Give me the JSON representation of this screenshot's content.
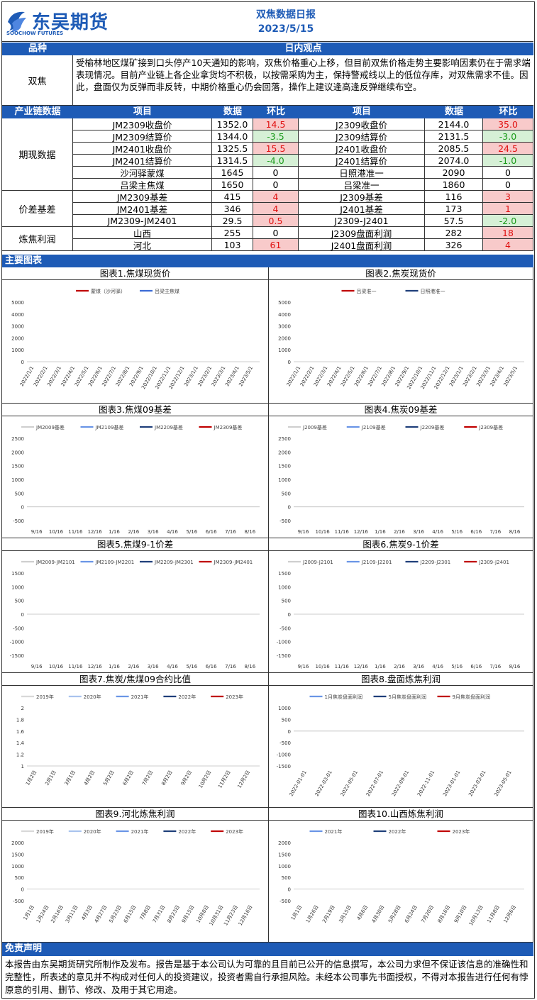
{
  "header": {
    "company": "东吴期货",
    "company_sub": "SOOCHOW FUTURES",
    "title": "双焦数据日报",
    "date": "2023/5/15"
  },
  "top_bar": {
    "variety": "品种",
    "view": "日内观点"
  },
  "view": {
    "variety": "双焦",
    "text": "受榆林地区煤矿接到口头停产10天通知的影响，双焦价格重心上移，但目前双焦价格走势主要影响因素仍在于需求端表现情况。目前产业链上各企业拿货均不积极，以按需采购为主，保持警戒线以上的低位存库，对双焦需求不佳。因此，盘面仅为反弹而非反转，中期价格重心仍会回落，操作上建议逢高逢反弹继续布空。"
  },
  "table_header": {
    "section": "产业链数据",
    "item": "项目",
    "data": "数据",
    "change": "环比"
  },
  "sections": [
    {
      "name": "期现数据",
      "rows": [
        {
          "l_item": "JM2309收盘价",
          "l_val": "1352.0",
          "l_chg": "14.5",
          "l_c": "red",
          "r_item": "J2309收盘价",
          "r_val": "2144.0",
          "r_chg": "35.0",
          "r_c": "red"
        },
        {
          "l_item": "JM2309结算价",
          "l_val": "1344.0",
          "l_chg": "-3.5",
          "l_c": "grn",
          "r_item": "J2309结算价",
          "r_val": "2131.5",
          "r_chg": "-3.0",
          "r_c": "grn"
        },
        {
          "l_item": "JM2401收盘价",
          "l_val": "1325.5",
          "l_chg": "15.5",
          "l_c": "red",
          "r_item": "J2401收盘价",
          "r_val": "2085.5",
          "r_chg": "24.5",
          "r_c": "red"
        },
        {
          "l_item": "JM2401结算价",
          "l_val": "1314.5",
          "l_chg": "-4.0",
          "l_c": "grn",
          "r_item": "J2401结算价",
          "r_val": "2074.0",
          "r_chg": "-1.0",
          "r_c": "grn"
        },
        {
          "l_item": "沙河驿蒙煤",
          "l_val": "1645",
          "l_chg": "0",
          "l_c": "",
          "r_item": "日照港准一",
          "r_val": "2090",
          "r_chg": "0",
          "r_c": ""
        },
        {
          "l_item": "吕梁主焦煤",
          "l_val": "1650",
          "l_chg": "0",
          "l_c": "",
          "r_item": "吕梁准一",
          "r_val": "1860",
          "r_chg": "0",
          "r_c": ""
        }
      ]
    },
    {
      "name": "价差基差",
      "rows": [
        {
          "l_item": "JM2309基差",
          "l_val": "415",
          "l_chg": "4",
          "l_c": "red",
          "r_item": "J2309基差",
          "r_val": "116",
          "r_chg": "3",
          "r_c": "red"
        },
        {
          "l_item": "JM2401基差",
          "l_val": "346",
          "l_chg": "4",
          "l_c": "red",
          "r_item": "J2401基差",
          "r_val": "173",
          "r_chg": "1",
          "r_c": "red"
        },
        {
          "l_item": "JM2309-JM2401",
          "l_val": "29.5",
          "l_chg": "0.5",
          "l_c": "red",
          "r_item": "J2309-J2401",
          "r_val": "57.5",
          "r_chg": "-2.0",
          "r_c": "grn"
        }
      ]
    },
    {
      "name": "炼焦利润",
      "rows": [
        {
          "l_item": "山西",
          "l_val": "255",
          "l_chg": "0",
          "l_c": "",
          "r_item": "J2309盘面利润",
          "r_val": "282",
          "r_chg": "18",
          "r_c": "red"
        },
        {
          "l_item": "河北",
          "l_val": "103",
          "l_chg": "61",
          "l_c": "red",
          "r_item": "J2401盘面利润",
          "r_val": "326",
          "r_chg": "4",
          "r_c": "red"
        }
      ]
    }
  ],
  "charts_bar": "主要图表",
  "charts": [
    {
      "title": "图表1.焦煤现货价",
      "legend": [
        "蒙煤（沙河驿）",
        "吕梁主焦煤"
      ],
      "colors": [
        "#c00000",
        "#3b6bd6"
      ],
      "yticks": [
        "5000",
        "4000",
        "3000",
        "2000",
        "1000",
        "0"
      ],
      "xticks": [
        "2022/1/1",
        "2022/2/1",
        "2022/3/1",
        "2022/4/1",
        "2022/5/1",
        "2022/6/1",
        "2022/7/1",
        "2022/8/1",
        "2022/9/1",
        "2022/10/1",
        "2022/11/1",
        "2022/12/1",
        "2023/1/1",
        "2023/2/1",
        "2023/3/1",
        "2023/4/1",
        "2023/5/1"
      ],
      "xrot": true
    },
    {
      "title": "图表2.焦炭现货价",
      "legend": [
        "吕梁准一",
        "日照港准一"
      ],
      "colors": [
        "#c00000",
        "#1f3f7a"
      ],
      "yticks": [
        "5000",
        "4000",
        "3000",
        "2000",
        "1000",
        "0"
      ],
      "xticks": [
        "2022/1/1",
        "2022/2/1",
        "2022/3/1",
        "2022/4/1",
        "2022/5/1",
        "2022/6/1",
        "2022/7/1",
        "2022/8/1",
        "2022/9/1",
        "2022/10/1",
        "2022/11/1",
        "2022/12/1",
        "2023/1/1",
        "2023/2/1",
        "2023/3/1",
        "2023/4/1",
        "2023/5/1"
      ],
      "xrot": true
    },
    {
      "title": "图表3.焦煤09基差",
      "legend": [
        "JM2009基差",
        "JM2109基差",
        "JM2209基差",
        "JM2309基差"
      ],
      "colors": [
        "#cfcfcf",
        "#6a95e6",
        "#1f3f7a",
        "#c00000"
      ],
      "yticks": [
        "2500",
        "2000",
        "1500",
        "1000",
        "500",
        "0",
        "-500"
      ],
      "xticks": [
        "9/16",
        "10/16",
        "11/16",
        "12/16",
        "1/16",
        "2/16",
        "3/16",
        "4/16",
        "5/16",
        "6/16",
        "7/16",
        "8/16"
      ],
      "xrot": false
    },
    {
      "title": "图表4.焦炭09基差",
      "legend": [
        "J2009基差",
        "J2109基差",
        "J2209基差",
        "J2309基差"
      ],
      "colors": [
        "#cfcfcf",
        "#6a95e6",
        "#1f3f7a",
        "#c00000"
      ],
      "yticks": [
        "2500",
        "2000",
        "1500",
        "1000",
        "500",
        "0",
        "-500"
      ],
      "xticks": [
        "9/16",
        "10/16",
        "11/16",
        "12/16",
        "1/16",
        "2/16",
        "3/16",
        "4/16",
        "5/16",
        "6/16",
        "7/16",
        "8/16"
      ],
      "xrot": false
    },
    {
      "title": "图表5.焦煤9-1价差",
      "legend": [
        "JM2009-JM2101",
        "JM2109-JM2201",
        "JM2209-JM2301",
        "JM2309-JM2401"
      ],
      "colors": [
        "#cfcfcf",
        "#6a95e6",
        "#1f3f7a",
        "#c00000"
      ],
      "yticks": [
        "1500",
        "1000",
        "500",
        "0",
        "-500",
        "-1000",
        "-1500"
      ],
      "xticks": [
        "9/16",
        "10/16",
        "11/16",
        "12/16",
        "1/16",
        "2/16",
        "3/16",
        "4/16",
        "5/16",
        "6/16",
        "7/16",
        "8/16"
      ],
      "xrot": false
    },
    {
      "title": "图表6.焦炭9-1价差",
      "legend": [
        "J2009-J2101",
        "J2109-J2201",
        "J2209-J2301",
        "J2309-J2401"
      ],
      "colors": [
        "#cfcfcf",
        "#6a95e6",
        "#1f3f7a",
        "#c00000"
      ],
      "yticks": [
        "1500",
        "1000",
        "500",
        "0",
        "-500",
        "-1000",
        "-1500"
      ],
      "xticks": [
        "9/16",
        "10/16",
        "11/16",
        "12/16",
        "1/16",
        "2/16",
        "3/16",
        "4/16",
        "5/16",
        "6/16",
        "7/16",
        "8/16"
      ],
      "xrot": false
    },
    {
      "title": "图表7.焦炭/焦煤09合约比值",
      "legend": [
        "2019年",
        "2020年",
        "2021年",
        "2022年",
        "2023年"
      ],
      "colors": [
        "#d8d8d8",
        "#a9c3ee",
        "#6a95e6",
        "#1f3f7a",
        "#c00000"
      ],
      "yticks": [
        "2",
        "1.8",
        "1.6",
        "1.4",
        "1.2",
        "1"
      ],
      "xticks": [
        "1月2日",
        "2月1日",
        "3月1日",
        "4月2日",
        "5月2日",
        "6月2日",
        "7月2日",
        "8月2日",
        "9月2日",
        "10月2日",
        "11月2日",
        "12月2日"
      ],
      "xrot": true
    },
    {
      "title": "图表8.盘面炼焦利润",
      "legend": [
        "1月焦炭盘面利润",
        "5月焦炭盘面利润",
        "9月焦炭盘面利润"
      ],
      "colors": [
        "#6a95e6",
        "#1f3f7a",
        "#c00000"
      ],
      "yticks": [
        "1000",
        "500",
        "0",
        "-500",
        "-1000",
        "-1500"
      ],
      "xticks": [
        "2022-01-01",
        "2022-03-01",
        "2022-05-01",
        "2022-07-01",
        "2022-09-01",
        "2022-11-01",
        "2023-01-01",
        "2023-03-01",
        "2023-05-01"
      ],
      "xrot": true
    },
    {
      "title": "图表9.河北炼焦利润",
      "legend": [
        "2019年",
        "2020年",
        "2021年",
        "2022年",
        "2023年"
      ],
      "colors": [
        "#d8d8d8",
        "#a9c3ee",
        "#6a95e6",
        "#1f3f7a",
        "#c00000"
      ],
      "yticks": [
        "2000",
        "1500",
        "1000",
        "500",
        "0",
        "-500"
      ],
      "xticks": [
        "1月1日",
        "1月24日",
        "2月16日",
        "3月11日",
        "4月3日",
        "4月27日",
        "5月23日",
        "6月15日",
        "7月8日",
        "7月31日",
        "8月23日",
        "9月15日",
        "10月8日",
        "10月31日",
        "11月23日",
        "12月16日"
      ],
      "xrot": true
    },
    {
      "title": "图表10.山西炼焦利润",
      "legend": [
        "2021年",
        "2022年",
        "2023年"
      ],
      "colors": [
        "#6a95e6",
        "#1f3f7a",
        "#c00000"
      ],
      "yticks": [
        "2000",
        "1500",
        "1000",
        "500",
        "0",
        "-500"
      ],
      "xticks": [
        "1月1日",
        "1月26日",
        "2月19日",
        "3月15日",
        "4月6日",
        "4月30日",
        "5月28日",
        "6月24日",
        "7月20日",
        "8月16日",
        "9月10日",
        "10月13日",
        "11月8日",
        "12月6日"
      ],
      "xrot": true
    }
  ],
  "disclaimer": {
    "title": "免责声明",
    "text": "本报告由东吴期货研究所制作及发布。报告是基于本公司认为可靠的且目前已公开的信息撰写，本公司力求但不保证该信息的准确性和完整性，所表述的意见并不构成对任何人的投资建议，投资者需自行承担风险。未经本公司事先书面授权，不得对本报告进行任何有悖原意的引用、删节、修改、及用于其它用途。"
  }
}
